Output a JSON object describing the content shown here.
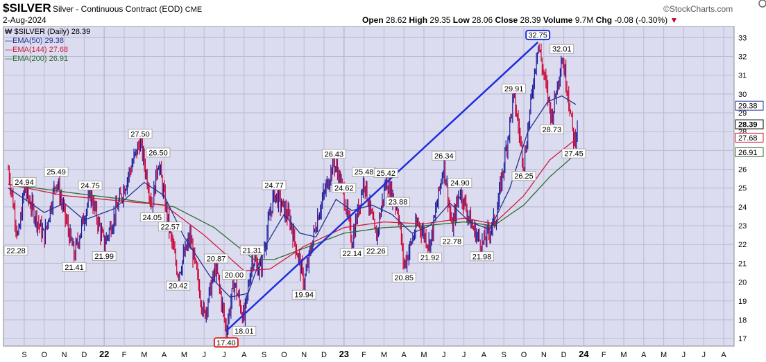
{
  "header": {
    "symbol": "$SILVER",
    "description": "Silver - Continuous Contract (EOD)",
    "exchange": "CME",
    "date": "2-Aug-2024",
    "brand": "©StockCharts.com",
    "quote": {
      "open_label": "Open",
      "open": "28.62",
      "high_label": "High",
      "high": "29.35",
      "low_label": "Low",
      "low": "28.06",
      "close_label": "Close",
      "close": "28.39",
      "volume_label": "Volume",
      "volume": "9.7M",
      "chg_label": "Chg",
      "chg": "-0.08 (-0.30%)",
      "chg_arrow": "▼"
    }
  },
  "legend": {
    "main": "$SILVER (Daily) 28.39",
    "ema50": "EMA(50) 29.38",
    "ema144": "EMA(144) 27.68",
    "ema200": "EMA(200) 26.91"
  },
  "colors": {
    "plot_bg": "#dcdcf0",
    "grid": "#b9b9d2",
    "bar_up": "#1a1a9a",
    "bar_down": "#cc0033",
    "ema50": "#23308f",
    "ema144": "#d11a3a",
    "ema200": "#2f6b2f",
    "trendline": "#1d2ddc",
    "label_box": "#ffffff"
  },
  "chart_data": {
    "type": "line",
    "title": "$SILVER (Daily)",
    "x_tick_labels": [
      "S",
      "O",
      "N",
      "D",
      "22",
      "F",
      "M",
      "A",
      "M",
      "J",
      "J",
      "A",
      "S",
      "O",
      "N",
      "D",
      "23",
      "F",
      "M",
      "A",
      "M",
      "J",
      "J",
      "A",
      "S",
      "O",
      "N",
      "D",
      "24",
      "F",
      "M",
      "A",
      "M",
      "J",
      "J",
      "A"
    ],
    "y_range": [
      16.6,
      33.6
    ],
    "y_ticks": [
      17,
      18,
      19,
      20,
      21,
      22,
      23,
      24,
      25,
      26,
      27,
      28,
      29,
      30,
      31,
      32,
      33
    ],
    "x_months_index": [
      0,
      1,
      2,
      3,
      4,
      5,
      6,
      7,
      8,
      9,
      10,
      11,
      12,
      13,
      14,
      15,
      16,
      17,
      18,
      19,
      20,
      21,
      22,
      23,
      24,
      25,
      26,
      27,
      28,
      29,
      30,
      31,
      32,
      33,
      34,
      35
    ],
    "price_anchors": [
      {
        "m": -0.8,
        "v": 26.0
      },
      {
        "m": -0.3,
        "v": 22.28
      },
      {
        "m": 0.0,
        "v": 24.94
      },
      {
        "m": 1.0,
        "v": 22.4
      },
      {
        "m": 1.6,
        "v": 25.49
      },
      {
        "m": 2.5,
        "v": 21.41
      },
      {
        "m": 3.3,
        "v": 24.75
      },
      {
        "m": 4.0,
        "v": 21.99
      },
      {
        "m": 5.8,
        "v": 27.5
      },
      {
        "m": 6.4,
        "v": 24.05
      },
      {
        "m": 6.7,
        "v": 26.5
      },
      {
        "m": 7.3,
        "v": 22.57
      },
      {
        "m": 7.7,
        "v": 20.42
      },
      {
        "m": 8.3,
        "v": 22.4
      },
      {
        "m": 9.0,
        "v": 18.2
      },
      {
        "m": 9.6,
        "v": 20.87
      },
      {
        "m": 10.1,
        "v": 17.4
      },
      {
        "m": 10.5,
        "v": 20.0
      },
      {
        "m": 11.0,
        "v": 18.01
      },
      {
        "m": 11.4,
        "v": 21.31
      },
      {
        "m": 11.8,
        "v": 20.6
      },
      {
        "m": 12.5,
        "v": 24.77
      },
      {
        "m": 13.3,
        "v": 23.3
      },
      {
        "m": 14.0,
        "v": 19.94
      },
      {
        "m": 14.7,
        "v": 23.6
      },
      {
        "m": 15.5,
        "v": 26.43
      },
      {
        "m": 16.0,
        "v": 24.62
      },
      {
        "m": 16.4,
        "v": 22.14
      },
      {
        "m": 17.0,
        "v": 25.48
      },
      {
        "m": 17.6,
        "v": 22.26
      },
      {
        "m": 18.1,
        "v": 25.42
      },
      {
        "m": 18.7,
        "v": 23.88
      },
      {
        "m": 19.0,
        "v": 20.85
      },
      {
        "m": 19.7,
        "v": 23.2
      },
      {
        "m": 20.3,
        "v": 21.92
      },
      {
        "m": 21.0,
        "v": 26.34
      },
      {
        "m": 21.4,
        "v": 22.78
      },
      {
        "m": 21.8,
        "v": 24.9
      },
      {
        "m": 22.4,
        "v": 23.0
      },
      {
        "m": 22.9,
        "v": 21.98
      },
      {
        "m": 23.6,
        "v": 23.4
      },
      {
        "m": 24.5,
        "v": 29.91
      },
      {
        "m": 25.0,
        "v": 26.25
      },
      {
        "m": 25.7,
        "v": 32.75
      },
      {
        "m": 26.4,
        "v": 28.73
      },
      {
        "m": 26.9,
        "v": 32.01
      },
      {
        "m": 27.2,
        "v": 30.2
      },
      {
        "m": 27.5,
        "v": 27.45
      },
      {
        "m": 27.7,
        "v": 28.39
      }
    ],
    "ema_anchors": {
      "ema50": [
        {
          "m": -0.8,
          "v": 25.0
        },
        {
          "m": 1.0,
          "v": 23.7
        },
        {
          "m": 2.0,
          "v": 24.2
        },
        {
          "m": 3.0,
          "v": 23.3
        },
        {
          "m": 4.5,
          "v": 23.9
        },
        {
          "m": 6.0,
          "v": 25.3
        },
        {
          "m": 7.0,
          "v": 24.6
        },
        {
          "m": 8.0,
          "v": 22.4
        },
        {
          "m": 9.3,
          "v": 20.3
        },
        {
          "m": 10.3,
          "v": 19.2
        },
        {
          "m": 11.2,
          "v": 19.4
        },
        {
          "m": 12.0,
          "v": 21.8
        },
        {
          "m": 13.0,
          "v": 23.6
        },
        {
          "m": 13.8,
          "v": 22.6
        },
        {
          "m": 14.6,
          "v": 22.4
        },
        {
          "m": 15.6,
          "v": 24.4
        },
        {
          "m": 16.4,
          "v": 23.8
        },
        {
          "m": 17.4,
          "v": 24.1
        },
        {
          "m": 18.4,
          "v": 23.6
        },
        {
          "m": 19.4,
          "v": 22.6
        },
        {
          "m": 20.3,
          "v": 23.0
        },
        {
          "m": 21.3,
          "v": 24.2
        },
        {
          "m": 22.3,
          "v": 23.2
        },
        {
          "m": 23.3,
          "v": 22.8
        },
        {
          "m": 24.3,
          "v": 25.0
        },
        {
          "m": 25.2,
          "v": 28.0
        },
        {
          "m": 26.2,
          "v": 29.6
        },
        {
          "m": 26.9,
          "v": 29.9
        },
        {
          "m": 27.7,
          "v": 29.38
        }
      ],
      "ema144": [
        {
          "m": -0.8,
          "v": 25.2
        },
        {
          "m": 2.0,
          "v": 24.6
        },
        {
          "m": 5.0,
          "v": 24.3
        },
        {
          "m": 7.0,
          "v": 24.1
        },
        {
          "m": 9.0,
          "v": 22.5
        },
        {
          "m": 11.0,
          "v": 20.6
        },
        {
          "m": 12.3,
          "v": 20.7
        },
        {
          "m": 14.0,
          "v": 21.9
        },
        {
          "m": 16.0,
          "v": 22.9
        },
        {
          "m": 18.0,
          "v": 23.2
        },
        {
          "m": 20.0,
          "v": 23.1
        },
        {
          "m": 22.0,
          "v": 23.4
        },
        {
          "m": 23.5,
          "v": 23.1
        },
        {
          "m": 25.0,
          "v": 24.6
        },
        {
          "m": 26.3,
          "v": 26.5
        },
        {
          "m": 27.7,
          "v": 27.68
        }
      ],
      "ema200": [
        {
          "m": -0.8,
          "v": 25.2
        },
        {
          "m": 2.0,
          "v": 24.8
        },
        {
          "m": 5.0,
          "v": 24.4
        },
        {
          "m": 7.5,
          "v": 24.0
        },
        {
          "m": 9.5,
          "v": 22.9
        },
        {
          "m": 11.5,
          "v": 21.2
        },
        {
          "m": 12.5,
          "v": 21.2
        },
        {
          "m": 14.0,
          "v": 21.8
        },
        {
          "m": 16.0,
          "v": 22.6
        },
        {
          "m": 18.0,
          "v": 22.9
        },
        {
          "m": 20.0,
          "v": 23.0
        },
        {
          "m": 22.0,
          "v": 23.2
        },
        {
          "m": 23.5,
          "v": 23.0
        },
        {
          "m": 25.0,
          "v": 24.1
        },
        {
          "m": 26.3,
          "v": 25.6
        },
        {
          "m": 27.7,
          "v": 26.91
        }
      ]
    },
    "trendline": [
      {
        "m": 10.1,
        "v": 17.4
      },
      {
        "m": 25.7,
        "v": 32.75
      }
    ],
    "annotations": [
      {
        "text": "22.28",
        "m": -0.9,
        "v": 22.28,
        "pos": "below"
      },
      {
        "text": "24.94",
        "m": 0.0,
        "v": 24.94,
        "pos": "above"
      },
      {
        "text": "25.49",
        "m": 1.6,
        "v": 25.49,
        "pos": "above"
      },
      {
        "text": "21.41",
        "m": 2.5,
        "v": 21.41,
        "pos": "below"
      },
      {
        "text": "24.75",
        "m": 3.3,
        "v": 24.75,
        "pos": "above"
      },
      {
        "text": "21.99",
        "m": 4.0,
        "v": 21.99,
        "pos": "below"
      },
      {
        "text": "27.50",
        "m": 5.8,
        "v": 27.5,
        "pos": "above"
      },
      {
        "text": "24.05",
        "m": 6.4,
        "v": 24.05,
        "pos": "below"
      },
      {
        "text": "26.50",
        "m": 6.7,
        "v": 26.5,
        "pos": "above"
      },
      {
        "text": "22.57",
        "m": 7.3,
        "v": 22.57,
        "pos": "above"
      },
      {
        "text": "20.42",
        "m": 7.7,
        "v": 20.42,
        "pos": "below"
      },
      {
        "text": "20.87",
        "m": 9.6,
        "v": 20.87,
        "pos": "above"
      },
      {
        "text": "17.40",
        "m": 10.1,
        "v": 17.4,
        "pos": "below",
        "highlight": "#e02020"
      },
      {
        "text": "20.00",
        "m": 10.5,
        "v": 20.0,
        "pos": "above"
      },
      {
        "text": "18.01",
        "m": 11.0,
        "v": 18.01,
        "pos": "below"
      },
      {
        "text": "21.31",
        "m": 11.4,
        "v": 21.31,
        "pos": "above"
      },
      {
        "text": "24.77",
        "m": 12.5,
        "v": 24.77,
        "pos": "above"
      },
      {
        "text": "19.94",
        "m": 14.0,
        "v": 19.94,
        "pos": "below"
      },
      {
        "text": "26.43",
        "m": 15.5,
        "v": 26.43,
        "pos": "above"
      },
      {
        "text": "24.62",
        "m": 16.0,
        "v": 24.62,
        "pos": "above"
      },
      {
        "text": "22.14",
        "m": 16.4,
        "v": 22.14,
        "pos": "below"
      },
      {
        "text": "25.48",
        "m": 17.0,
        "v": 25.48,
        "pos": "above"
      },
      {
        "text": "22.26",
        "m": 17.6,
        "v": 22.26,
        "pos": "below"
      },
      {
        "text": "25.42",
        "m": 18.1,
        "v": 25.42,
        "pos": "above"
      },
      {
        "text": "23.88",
        "m": 18.7,
        "v": 23.88,
        "pos": "above"
      },
      {
        "text": "20.85",
        "m": 19.0,
        "v": 20.85,
        "pos": "below"
      },
      {
        "text": "21.92",
        "m": 20.3,
        "v": 21.92,
        "pos": "below"
      },
      {
        "text": "26.34",
        "m": 21.0,
        "v": 26.34,
        "pos": "above"
      },
      {
        "text": "22.78",
        "m": 21.4,
        "v": 22.78,
        "pos": "below"
      },
      {
        "text": "24.90",
        "m": 21.8,
        "v": 24.9,
        "pos": "above"
      },
      {
        "text": "21.98",
        "m": 22.9,
        "v": 21.98,
        "pos": "below"
      },
      {
        "text": "29.91",
        "m": 24.5,
        "v": 29.91,
        "pos": "above"
      },
      {
        "text": "26.25",
        "m": 25.0,
        "v": 26.25,
        "pos": "below"
      },
      {
        "text": "32.75",
        "m": 25.7,
        "v": 32.75,
        "pos": "above",
        "highlight": "#1d2ddc"
      },
      {
        "text": "28.73",
        "m": 26.4,
        "v": 28.73,
        "pos": "below"
      },
      {
        "text": "32.01",
        "m": 26.9,
        "v": 32.01,
        "pos": "above"
      },
      {
        "text": "27.45",
        "m": 27.5,
        "v": 27.45,
        "pos": "below"
      }
    ],
    "right_axis_tags": [
      {
        "text": "29.38",
        "v": 29.38,
        "color": "#23308f"
      },
      {
        "text": "28.39",
        "v": 28.39,
        "color": "#000000",
        "bold": true
      },
      {
        "text": "27.68",
        "v": 27.68,
        "color": "#d11a3a"
      },
      {
        "text": "26.91",
        "v": 26.91,
        "color": "#2f6b2f"
      }
    ]
  }
}
